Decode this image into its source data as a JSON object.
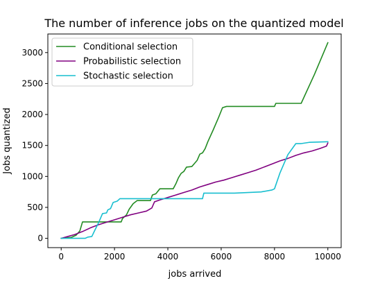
{
  "chart_data": {
    "type": "line",
    "title": "The number of inference jobs on the quantized model",
    "xlabel": "jobs arrived",
    "ylabel": "Jobs quantized",
    "xlim": [
      -500,
      10500
    ],
    "ylim": [
      -150,
      3300
    ],
    "xticks": [
      0,
      2000,
      4000,
      6000,
      8000,
      10000
    ],
    "xtick_labels": [
      "0",
      "2000",
      "4000",
      "6000",
      "8000",
      "10000"
    ],
    "yticks": [
      0,
      500,
      1000,
      1500,
      2000,
      2500,
      3000
    ],
    "ytick_labels": [
      "0",
      "500",
      "1000",
      "1500",
      "2000",
      "2500",
      "3000"
    ],
    "grid": false,
    "legend_position": "top-left",
    "series": [
      {
        "name": "Conditional selection",
        "color": "#228b22",
        "points": [
          [
            0,
            0
          ],
          [
            380,
            15
          ],
          [
            560,
            50
          ],
          [
            700,
            120
          ],
          [
            800,
            265
          ],
          [
            1000,
            265
          ],
          [
            1500,
            265
          ],
          [
            1700,
            265
          ],
          [
            2000,
            265
          ],
          [
            2250,
            265
          ],
          [
            2300,
            320
          ],
          [
            2450,
            380
          ],
          [
            2550,
            470
          ],
          [
            2700,
            560
          ],
          [
            2850,
            610
          ],
          [
            3000,
            610
          ],
          [
            3350,
            610
          ],
          [
            3420,
            700
          ],
          [
            3550,
            720
          ],
          [
            3700,
            800
          ],
          [
            4000,
            800
          ],
          [
            4200,
            800
          ],
          [
            4300,
            880
          ],
          [
            4400,
            980
          ],
          [
            4500,
            1050
          ],
          [
            4600,
            1080
          ],
          [
            4700,
            1150
          ],
          [
            4900,
            1160
          ],
          [
            5000,
            1210
          ],
          [
            5100,
            1260
          ],
          [
            5200,
            1360
          ],
          [
            5300,
            1380
          ],
          [
            5400,
            1450
          ],
          [
            5500,
            1560
          ],
          [
            5700,
            1750
          ],
          [
            5900,
            1950
          ],
          [
            6050,
            2110
          ],
          [
            6200,
            2130
          ],
          [
            7000,
            2130
          ],
          [
            8000,
            2130
          ],
          [
            8050,
            2180
          ],
          [
            8500,
            2180
          ],
          [
            9000,
            2180
          ],
          [
            9500,
            2650
          ],
          [
            10000,
            3160
          ]
        ]
      },
      {
        "name": "Probabilistic selection",
        "color": "#800080",
        "points": [
          [
            0,
            0
          ],
          [
            250,
            30
          ],
          [
            500,
            60
          ],
          [
            800,
            110
          ],
          [
            1100,
            170
          ],
          [
            1400,
            220
          ],
          [
            1700,
            260
          ],
          [
            2000,
            300
          ],
          [
            2300,
            340
          ],
          [
            2600,
            380
          ],
          [
            2900,
            410
          ],
          [
            3200,
            440
          ],
          [
            3400,
            490
          ],
          [
            3500,
            590
          ],
          [
            3700,
            620
          ],
          [
            4000,
            660
          ],
          [
            4300,
            700
          ],
          [
            4600,
            740
          ],
          [
            4900,
            780
          ],
          [
            5200,
            830
          ],
          [
            5500,
            870
          ],
          [
            5800,
            910
          ],
          [
            6100,
            940
          ],
          [
            6400,
            980
          ],
          [
            6700,
            1020
          ],
          [
            7000,
            1060
          ],
          [
            7300,
            1100
          ],
          [
            7600,
            1150
          ],
          [
            7900,
            1200
          ],
          [
            8200,
            1250
          ],
          [
            8500,
            1290
          ],
          [
            8800,
            1340
          ],
          [
            9100,
            1380
          ],
          [
            9400,
            1410
          ],
          [
            9700,
            1450
          ],
          [
            9950,
            1490
          ],
          [
            10000,
            1540
          ]
        ]
      },
      {
        "name": "Stochastic selection",
        "color": "#17becf",
        "points": [
          [
            0,
            0
          ],
          [
            500,
            0
          ],
          [
            900,
            0
          ],
          [
            1000,
            20
          ],
          [
            1150,
            30
          ],
          [
            1250,
            120
          ],
          [
            1400,
            250
          ],
          [
            1550,
            400
          ],
          [
            1700,
            410
          ],
          [
            1750,
            460
          ],
          [
            1850,
            480
          ],
          [
            1950,
            580
          ],
          [
            2100,
            600
          ],
          [
            2200,
            640
          ],
          [
            2500,
            640
          ],
          [
            3000,
            640
          ],
          [
            3500,
            640
          ],
          [
            4000,
            640
          ],
          [
            4500,
            640
          ],
          [
            5000,
            640
          ],
          [
            5300,
            640
          ],
          [
            5350,
            730
          ],
          [
            6000,
            730
          ],
          [
            6500,
            730
          ],
          [
            7000,
            740
          ],
          [
            7500,
            750
          ],
          [
            7900,
            780
          ],
          [
            8000,
            800
          ],
          [
            8200,
            1050
          ],
          [
            8500,
            1350
          ],
          [
            8800,
            1530
          ],
          [
            9000,
            1530
          ],
          [
            9300,
            1550
          ],
          [
            10000,
            1560
          ]
        ]
      }
    ]
  }
}
